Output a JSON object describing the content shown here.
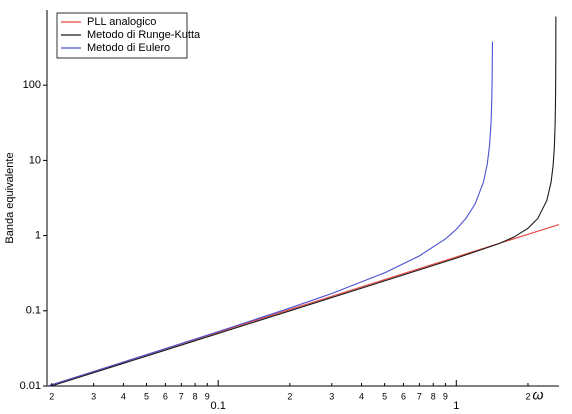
{
  "chart_data": {
    "type": "line",
    "y_label": "Banda equivalente",
    "x_label": "ω",
    "log_x": true,
    "log_y": true,
    "xlim": [
      0.0191,
      2.7
    ],
    "ylim": [
      0.01,
      1000
    ],
    "xticks": [
      {
        "value": 0.02,
        "label": "2"
      },
      {
        "value": 0.03,
        "label": "3"
      },
      {
        "value": 0.04,
        "label": "4"
      },
      {
        "value": 0.05,
        "label": "5"
      },
      {
        "value": 0.06,
        "label": "6"
      },
      {
        "value": 0.07,
        "label": "7"
      },
      {
        "value": 0.08,
        "label": "8"
      },
      {
        "value": 0.09,
        "label": "9"
      },
      0.1,
      {
        "value": 0.2,
        "label": "2"
      },
      {
        "value": 0.3,
        "label": "3"
      },
      {
        "value": 0.4,
        "label": "4"
      },
      {
        "value": 0.5,
        "label": "5"
      },
      {
        "value": 0.6,
        "label": "6"
      },
      {
        "value": 0.7,
        "label": "7"
      },
      {
        "value": 0.8,
        "label": "8"
      },
      {
        "value": 0.9,
        "label": "9"
      },
      1,
      {
        "value": 2,
        "label": "2"
      }
    ],
    "yticks": [
      0.01,
      0.1,
      1,
      10,
      100
    ],
    "legend": "top-left",
    "series": [
      {
        "name": "PLL analogico",
        "color": "#e8453c",
        "x": [
          0.0191,
          2.7
        ],
        "values": [
          0.00993,
          1.404
        ]
      },
      {
        "name": "Metodo di Runge-Kutta",
        "color": "#1a1a1a",
        "x": [
          0.0191,
          0.05,
          0.1,
          0.2,
          0.5,
          1.0,
          1.5,
          1.75,
          2.0,
          2.2,
          2.4,
          2.5,
          2.55,
          2.58,
          2.6,
          2.61,
          2.615,
          2.618,
          2.619,
          2.6193
        ],
        "values": [
          0.0096,
          0.025,
          0.05,
          0.1,
          0.25,
          0.5015,
          0.777,
          0.96,
          1.25,
          1.69,
          2.93,
          5.1,
          8.5,
          14.6,
          29,
          57.5,
          115,
          286,
          572,
          818
        ]
      },
      {
        "name": "Metodo di Eulero",
        "color": "#4a4fd0",
        "x": [
          0.0191,
          0.03,
          0.05,
          0.1,
          0.2,
          0.3,
          0.5,
          0.7,
          0.9,
          1.0,
          1.1,
          1.2,
          1.3,
          1.35,
          1.38,
          1.4,
          1.41,
          1.415,
          1.418,
          1.4183
        ],
        "values": [
          0.0099,
          0.0156,
          0.0261,
          0.0528,
          0.1087,
          0.17,
          0.32,
          0.538,
          0.903,
          1.21,
          1.71,
          2.64,
          5.12,
          9.0,
          16.1,
          32.5,
          65,
          131,
          326,
          380
        ]
      }
    ]
  }
}
